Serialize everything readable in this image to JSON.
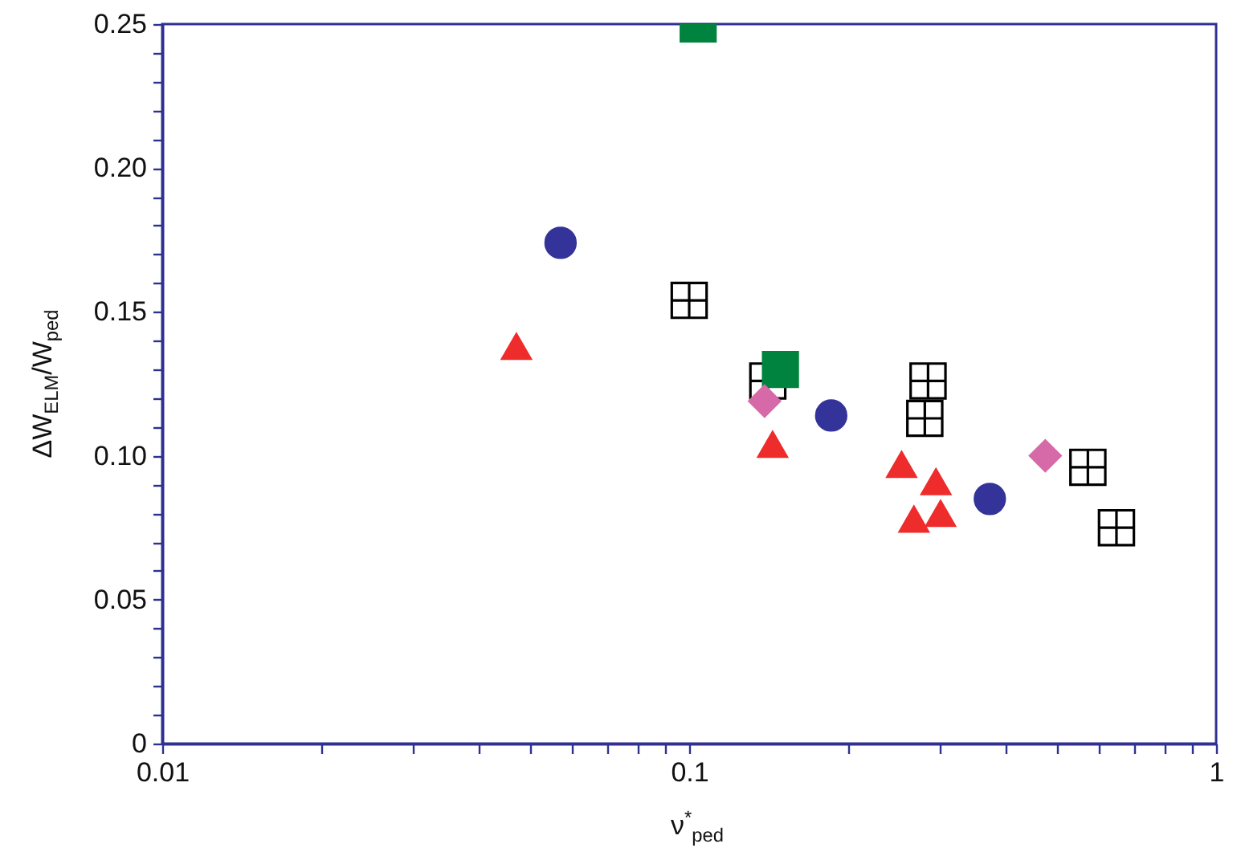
{
  "chart_data": {
    "type": "scatter",
    "xlabel": "ν$^{*}$$_{ped}$",
    "ylabel": "ΔW$_{ELM}$/W$_{ped}$",
    "log": "x",
    "grid": false,
    "xlim": [
      0.01,
      1
    ],
    "ylim": [
      0,
      0.25
    ],
    "xticks": [
      {
        "value": 0.01,
        "label": "0.01"
      },
      {
        "value": 0.02,
        "label": null
      },
      {
        "value": 0.03,
        "label": null
      },
      {
        "value": 0.04,
        "label": null
      },
      {
        "value": 0.05,
        "label": null
      },
      {
        "value": 0.06,
        "label": null
      },
      {
        "value": 0.07,
        "label": null
      },
      {
        "value": 0.08,
        "label": null
      },
      {
        "value": 0.09,
        "label": null
      },
      {
        "value": 0.1,
        "label": "0.1"
      },
      {
        "value": 0.2,
        "label": null
      },
      {
        "value": 0.3,
        "label": null
      },
      {
        "value": 0.4,
        "label": null
      },
      {
        "value": 0.5,
        "label": null
      },
      {
        "value": 0.6,
        "label": null
      },
      {
        "value": 0.7,
        "label": null
      },
      {
        "value": 0.8,
        "label": null
      },
      {
        "value": 0.9,
        "label": null
      },
      1
    ],
    "yticks": [
      0,
      {
        "value": 0.01,
        "label": null
      },
      {
        "value": 0.02,
        "label": null
      },
      {
        "value": 0.03,
        "label": null
      },
      {
        "value": 0.04,
        "label": null
      },
      0.05,
      {
        "value": 0.06,
        "label": null
      },
      {
        "value": 0.07,
        "label": null
      },
      {
        "value": 0.08,
        "label": null
      },
      {
        "value": 0.09,
        "label": null
      },
      {
        "value": 0.1,
        "label": "0.10"
      },
      {
        "value": 0.11,
        "label": null
      },
      {
        "value": 0.12,
        "label": null
      },
      {
        "value": 0.13,
        "label": null
      },
      {
        "value": 0.14,
        "label": null
      },
      0.15,
      {
        "value": 0.16,
        "label": null
      },
      {
        "value": 0.17,
        "label": null
      },
      {
        "value": 0.18,
        "label": null
      },
      {
        "value": 0.19,
        "label": null
      },
      {
        "value": 0.2,
        "label": "0.20"
      },
      {
        "value": 0.21,
        "label": null
      },
      {
        "value": 0.22,
        "label": null
      },
      {
        "value": 0.23,
        "label": null
      },
      {
        "value": 0.24,
        "label": null
      },
      0.25
    ],
    "series": [
      {
        "color": "#333399",
        "marker": "circle",
        "x": [
          0.057,
          0.186,
          0.372
        ],
        "values": [
          0.174,
          0.114,
          0.085
        ]
      },
      {
        "color": "#ee2c2c",
        "marker": "triangle",
        "x": [
          0.047,
          0.144,
          0.253,
          0.294,
          0.267,
          0.3
        ],
        "values": [
          0.138,
          0.104,
          0.097,
          0.091,
          0.078,
          0.08
        ]
      },
      {
        "color": "#000000",
        "marker": "cross",
        "x": [
          0.1,
          0.141,
          0.284,
          0.28,
          0.571,
          0.647
        ],
        "values": [
          0.154,
          0.126,
          0.126,
          0.113,
          0.096,
          0.075
        ]
      },
      {
        "color": "#00833e",
        "marker": "square",
        "x": [
          0.149,
          0.104
        ],
        "values": [
          0.13,
          0.25
        ]
      },
      {
        "color": "#d66aa8",
        "marker": "diamond",
        "x": [
          0.139
        ],
        "values": [
          0.119
        ]
      },
      {
        "color": "#d66aa8",
        "marker": "diamond",
        "x": [
          0.474
        ],
        "values": [
          0.1
        ]
      }
    ]
  }
}
